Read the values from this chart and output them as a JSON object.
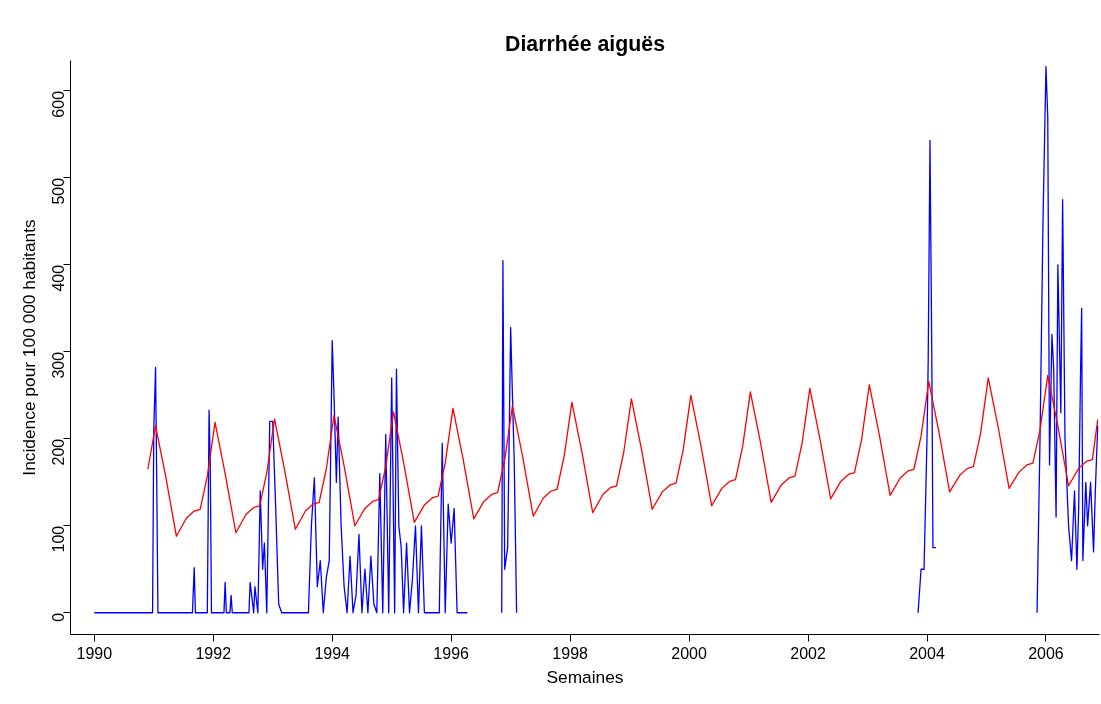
{
  "chart_data": {
    "type": "line",
    "title": "Diarrhée aiguës",
    "xlabel": "Semaines",
    "ylabel": "Incidence pour 100 000 habitants",
    "xlim": [
      1989.6,
      2006.9
    ],
    "ylim": [
      -25,
      635
    ],
    "xticks": [
      1990,
      1992,
      1994,
      1996,
      1998,
      2000,
      2002,
      2004,
      2006
    ],
    "yticks": [
      0,
      100,
      200,
      300,
      400,
      500,
      600
    ],
    "grid": false,
    "marker": "none",
    "line_style": "solid",
    "series": [
      {
        "color": "#0000ff",
        "x": [
          1990,
          1990.5,
          1990.98,
          1991.0,
          1991.03,
          1991.05,
          1991.07,
          1991.1,
          1991.65,
          1991.68,
          1991.7,
          1991.9,
          1991.93,
          1991.95,
          1991.97,
          1992.0,
          1992.18,
          1992.2,
          1992.22,
          1992.28,
          1992.3,
          1992.32,
          1992.6,
          1992.62,
          1992.68,
          1992.7,
          1992.75,
          1992.79,
          1992.83,
          1992.86,
          1992.9,
          1992.95,
          1993.0,
          1993.05,
          1993.1,
          1993.15,
          1993.6,
          1993.65,
          1993.7,
          1993.75,
          1993.8,
          1993.85,
          1993.9,
          1993.95,
          1994.0,
          1994.03,
          1994.07,
          1994.1,
          1994.15,
          1994.2,
          1994.25,
          1994.3,
          1994.35,
          1994.4,
          1994.45,
          1994.5,
          1994.55,
          1994.6,
          1994.65,
          1994.7,
          1994.75,
          1994.8,
          1994.85,
          1994.9,
          1994.95,
          1995.0,
          1995.05,
          1995.08,
          1995.12,
          1995.16,
          1995.2,
          1995.25,
          1995.3,
          1995.35,
          1995.4,
          1995.45,
          1995.5,
          1995.55,
          1995.8,
          1995.85,
          1995.9,
          1995.95,
          1996.0,
          1996.05,
          1996.1,
          1996.15,
          1996.27,
          1996.5,
          1996.85,
          1996.87,
          1996.9,
          1996.95,
          1997.0,
          1997.03,
          1997.06,
          1997.1,
          2000.0,
          2003.85,
          2003.9,
          2003.95,
          2004.0,
          2004.02,
          2004.05,
          2004.08,
          2004.1,
          2004.15,
          2005.0,
          2005.85,
          2005.9,
          2005.95,
          2006.0,
          2006.03,
          2006.06,
          2006.1,
          2006.13,
          2006.17,
          2006.2,
          2006.25,
          2006.28,
          2006.32,
          2006.38,
          2006.43,
          2006.48,
          2006.52,
          2006.55,
          2006.58,
          2006.6,
          2006.62,
          2006.67,
          2006.7,
          2006.75,
          2006.8,
          2006.83,
          2006.87
        ],
        "values": [
          0,
          0,
          0,
          210,
          282,
          150,
          0,
          0,
          0,
          52,
          0,
          0,
          233,
          170,
          0,
          0,
          0,
          35,
          0,
          0,
          20,
          0,
          0,
          35,
          0,
          30,
          0,
          140,
          50,
          80,
          0,
          220,
          220,
          120,
          10,
          0,
          0,
          100,
          155,
          30,
          60,
          0,
          40,
          60,
          313,
          250,
          150,
          225,
          100,
          30,
          0,
          65,
          0,
          20,
          90,
          0,
          50,
          0,
          65,
          10,
          0,
          160,
          0,
          205,
          0,
          270,
          0,
          280,
          100,
          75,
          0,
          80,
          0,
          40,
          100,
          0,
          100,
          0,
          0,
          195,
          0,
          125,
          80,
          120,
          0,
          0,
          0,
          null,
          0,
          405,
          50,
          75,
          328,
          250,
          175,
          0,
          null,
          0,
          50,
          50,
          200,
          290,
          543,
          300,
          75,
          75,
          null,
          0,
          200,
          450,
          628,
          570,
          170,
          320,
          280,
          110,
          400,
          230,
          475,
          200,
          100,
          60,
          140,
          50,
          120,
          270,
          350,
          60,
          150,
          100,
          150,
          70,
          140,
          215
        ]
      },
      {
        "color": "#ff0000",
        "x": [
          1990.9,
          1991.03,
          1991.2,
          1991.38,
          1991.55,
          1991.68,
          1991.78,
          1991.9,
          1992.03,
          1992.2,
          1992.38,
          1992.55,
          1992.68,
          1992.78,
          1992.9,
          1993.03,
          1993.2,
          1993.38,
          1993.55,
          1993.68,
          1993.78,
          1993.9,
          1994.03,
          1994.2,
          1994.38,
          1994.55,
          1994.68,
          1994.78,
          1994.9,
          1995.03,
          1995.2,
          1995.38,
          1995.55,
          1995.68,
          1995.78,
          1995.9,
          1996.03,
          1996.2,
          1996.38,
          1996.55,
          1996.68,
          1996.78,
          1996.9,
          1997.03,
          1997.2,
          1997.38,
          1997.55,
          1997.68,
          1997.78,
          1997.9,
          1998.03,
          1998.2,
          1998.38,
          1998.55,
          1998.68,
          1998.78,
          1998.9,
          1999.03,
          1999.2,
          1999.38,
          1999.55,
          1999.68,
          1999.78,
          1999.9,
          2000.03,
          2000.2,
          2000.38,
          2000.55,
          2000.68,
          2000.78,
          2000.9,
          2001.03,
          2001.2,
          2001.38,
          2001.55,
          2001.68,
          2001.78,
          2001.9,
          2002.03,
          2002.2,
          2002.38,
          2002.55,
          2002.68,
          2002.78,
          2002.9,
          2003.03,
          2003.2,
          2003.38,
          2003.55,
          2003.68,
          2003.78,
          2003.9,
          2004.03,
          2004.2,
          2004.38,
          2004.55,
          2004.68,
          2004.78,
          2004.9,
          2005.03,
          2005.2,
          2005.38,
          2005.55,
          2005.68,
          2005.78,
          2005.9,
          2006.03,
          2006.2,
          2006.38,
          2006.55,
          2006.68,
          2006.78,
          2006.87
        ],
        "values": [
          165,
          215,
          157,
          88,
          109,
          117,
          119,
          157,
          219,
          160,
          92,
          113,
          121,
          123,
          161,
          223,
          164,
          96,
          117,
          125,
          127,
          165,
          227,
          169,
          100,
          120,
          128,
          130,
          168,
          231,
          173,
          104,
          124,
          132,
          134,
          172,
          235,
          177,
          108,
          128,
          136,
          138,
          176,
          238,
          180,
          111,
          132,
          140,
          142,
          180,
          242,
          184,
          115,
          136,
          144,
          146,
          184,
          246,
          188,
          119,
          139,
          147,
          149,
          187,
          250,
          192,
          123,
          143,
          151,
          153,
          191,
          254,
          196,
          127,
          147,
          155,
          157,
          195,
          258,
          200,
          131,
          151,
          159,
          161,
          199,
          262,
          204,
          135,
          155,
          163,
          165,
          203,
          266,
          208,
          139,
          158,
          166,
          168,
          206,
          270,
          212,
          143,
          162,
          170,
          172,
          210,
          273,
          215,
          146,
          166,
          174,
          176,
          222
        ]
      }
    ]
  }
}
